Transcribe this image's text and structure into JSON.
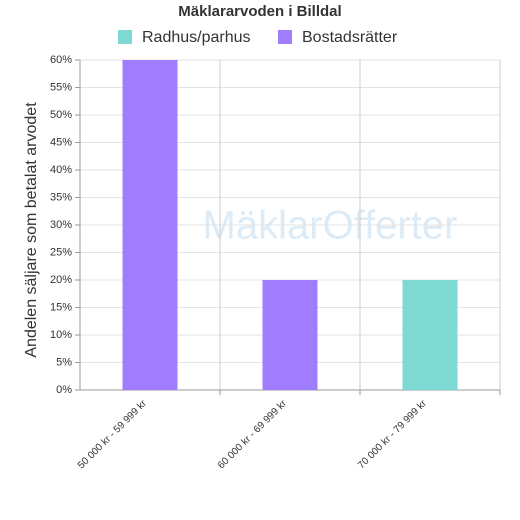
{
  "chart_data": {
    "type": "bar",
    "stacked": true,
    "title": "Mäklararvoden i Billdal",
    "watermark": "MäklarOfferter",
    "y_label": "Andelen säljare som betalat arvodet",
    "categories": [
      "50 000 kr - 59 999 kr",
      "60 000 kr - 69 999 kr",
      "70 000 kr - 79 999 kr"
    ],
    "series": [
      {
        "name": "Radhus/parhus",
        "color": "#7dd9d2",
        "values": [
          0,
          0,
          20
        ]
      },
      {
        "name": "Bostadsrätter",
        "color": "#a07cff",
        "values": [
          60,
          20,
          0
        ]
      }
    ],
    "ylim": [
      0,
      60
    ],
    "yticks": [
      {
        "value": 0,
        "label": "0%"
      },
      {
        "value": 5,
        "label": "5%"
      },
      {
        "value": 10,
        "label": "10%"
      },
      {
        "value": 15,
        "label": "15%"
      },
      {
        "value": 20,
        "label": "20%"
      },
      {
        "value": 25,
        "label": "25%"
      },
      {
        "value": 30,
        "label": "30%"
      },
      {
        "value": 35,
        "label": "35%"
      },
      {
        "value": 40,
        "label": "40%"
      },
      {
        "value": 45,
        "label": "45%"
      },
      {
        "value": 50,
        "label": "50%"
      },
      {
        "value": 55,
        "label": "55%"
      },
      {
        "value": 60,
        "label": "60%"
      }
    ],
    "grid": true
  }
}
